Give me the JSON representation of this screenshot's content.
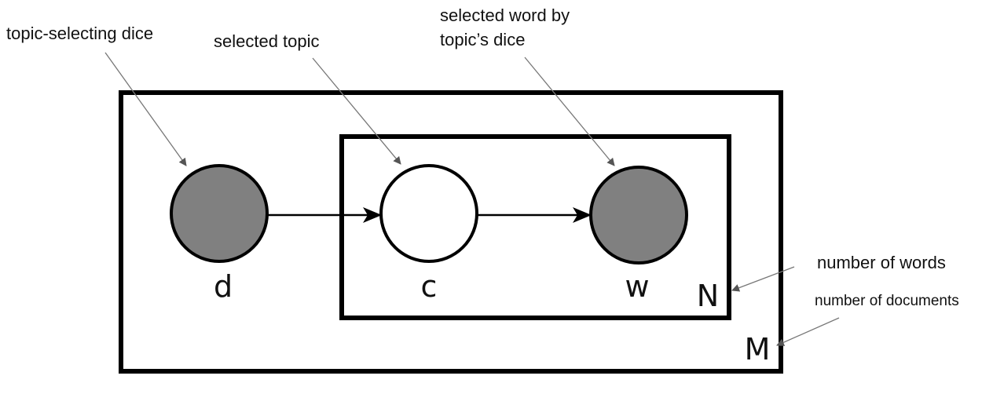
{
  "nodes": {
    "d": {
      "label": "d",
      "observed": true
    },
    "c": {
      "label": "c",
      "observed": false
    },
    "w": {
      "label": "w",
      "observed": true
    }
  },
  "plates": {
    "outer": {
      "label": "M"
    },
    "inner": {
      "label": "N"
    }
  },
  "annotations": {
    "topic_selecting_dice": "topic-selecting dice",
    "selected_topic": "selected topic",
    "selected_word_line1": "selected word by",
    "selected_word_line2": "topic’s dice",
    "number_of_words": "number of words",
    "number_of_documents": "number of documents"
  },
  "colors": {
    "observed_fill": "#808080",
    "latent_fill": "#ffffff",
    "stroke": "#000000",
    "pointer": "#777777"
  }
}
